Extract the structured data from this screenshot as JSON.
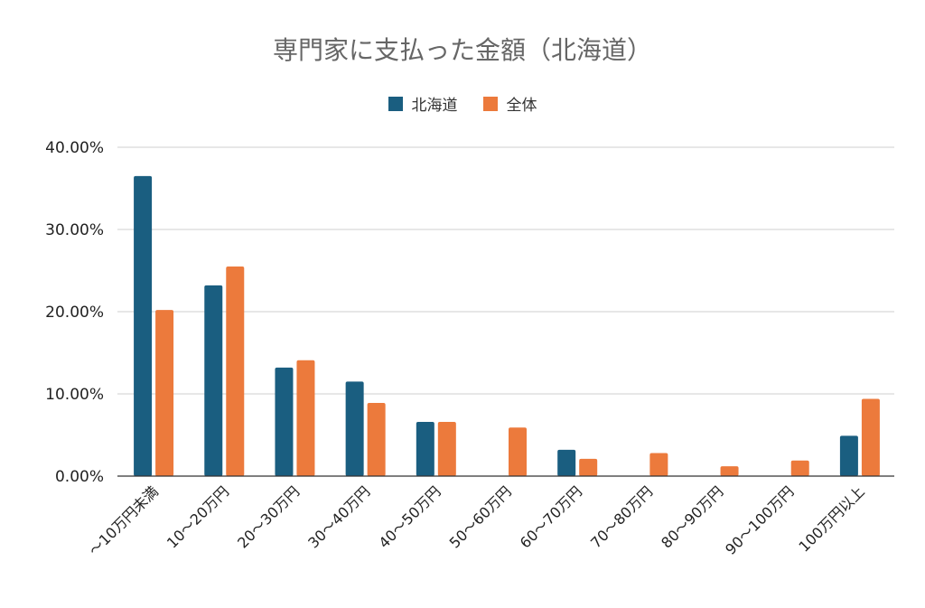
{
  "chart_data": {
    "type": "bar",
    "title": "専門家に支払った金額（北海道）",
    "categories": [
      "～10万円未満",
      "10～20万円",
      "20～30万円",
      "30～40万円",
      "40～50万円",
      "50～60万円",
      "60～70万円",
      "70～80万円",
      "80～90万円",
      "90～100万円",
      "100万円以上"
    ],
    "series": [
      {
        "name": "北海道",
        "color": "#1a5e80",
        "values": [
          36.5,
          23.2,
          13.2,
          11.5,
          6.6,
          0.0,
          3.2,
          0.0,
          0.0,
          0.0,
          4.9
        ]
      },
      {
        "name": "全体",
        "color": "#ec7a3c",
        "values": [
          20.2,
          25.5,
          14.1,
          8.9,
          6.6,
          5.9,
          2.1,
          2.8,
          1.2,
          1.9,
          9.4
        ]
      }
    ],
    "yticks": [
      "0.00%",
      "10.00%",
      "20.00%",
      "30.00%",
      "40.00%"
    ],
    "ylim": [
      0,
      40
    ],
    "legend_position": "top-center",
    "grid": true
  }
}
